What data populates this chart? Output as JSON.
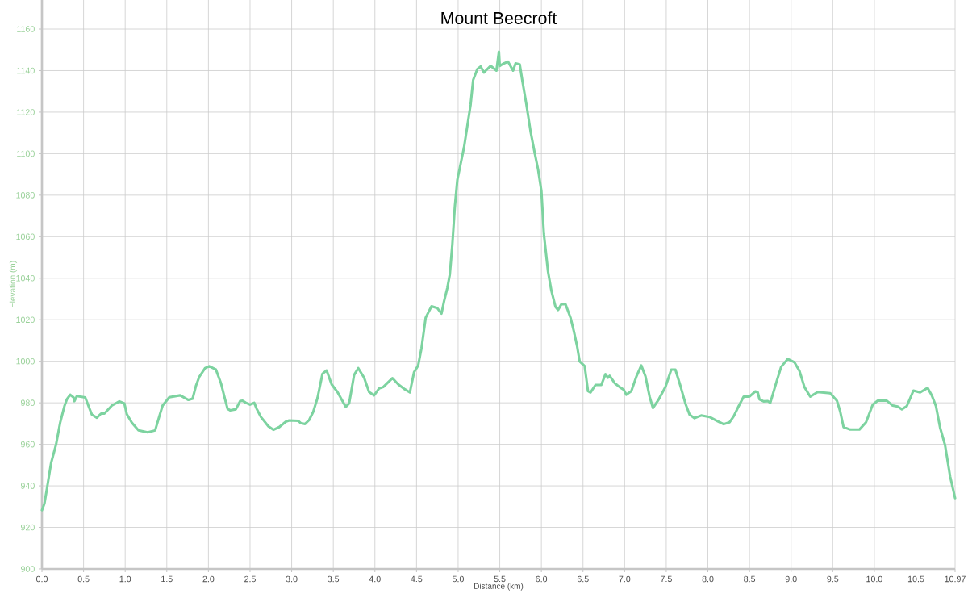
{
  "chart_data": {
    "type": "line",
    "title": "Mount Beecroft",
    "xlabel": "Distance (km)",
    "ylabel": "Elevation (m)",
    "xlim": [
      0,
      10.97
    ],
    "ylim": [
      900,
      1174
    ],
    "xticks": [
      {
        "value": 0,
        "label": "0.0"
      },
      {
        "value": 0.5,
        "label": "0.5"
      },
      {
        "value": 1,
        "label": "1.0"
      },
      {
        "value": 1.5,
        "label": "1.5"
      },
      {
        "value": 2,
        "label": "2.0"
      },
      {
        "value": 2.5,
        "label": "2.5"
      },
      {
        "value": 3,
        "label": "3.0"
      },
      {
        "value": 3.5,
        "label": "3.5"
      },
      {
        "value": 4,
        "label": "4.0"
      },
      {
        "value": 4.5,
        "label": "4.5"
      },
      {
        "value": 5,
        "label": "5.0"
      },
      {
        "value": 5.5,
        "label": "5.5"
      },
      {
        "value": 6,
        "label": "6.0"
      },
      {
        "value": 6.5,
        "label": "6.5"
      },
      {
        "value": 7,
        "label": "7.0"
      },
      {
        "value": 7.5,
        "label": "7.5"
      },
      {
        "value": 8,
        "label": "8.0"
      },
      {
        "value": 8.5,
        "label": "8.5"
      },
      {
        "value": 9,
        "label": "9.0"
      },
      {
        "value": 9.5,
        "label": "9.5"
      },
      {
        "value": 10,
        "label": "10.0"
      },
      {
        "value": 10.5,
        "label": "10.5"
      },
      10.97
    ],
    "yticks": [
      900,
      920,
      940,
      960,
      980,
      1000,
      1020,
      1040,
      1060,
      1080,
      1100,
      1120,
      1140,
      1160
    ],
    "grid": true,
    "line_style": "solid",
    "series": [
      {
        "color": "#7dd3a0",
        "x": [
          0,
          0.03,
          0.06,
          0.11,
          0.17,
          0.22,
          0.27,
          0.3,
          0.34,
          0.38,
          0.39,
          0.42,
          0.52,
          0.56,
          0.6,
          0.66,
          0.71,
          0.75,
          0.84,
          0.93,
          0.99,
          1.02,
          1.08,
          1.16,
          1.27,
          1.36,
          1.41,
          1.45,
          1.53,
          1.66,
          1.76,
          1.81,
          1.85,
          1.89,
          1.96,
          2.01,
          2.09,
          2.15,
          2.2,
          2.23,
          2.26,
          2.33,
          2.38,
          2.41,
          2.45,
          2.5,
          2.55,
          2.58,
          2.63,
          2.72,
          2.78,
          2.85,
          2.93,
          2.97,
          3.08,
          3.11,
          3.16,
          3.21,
          3.26,
          3.31,
          3.37,
          3.42,
          3.48,
          3.55,
          3.65,
          3.69,
          3.75,
          3.8,
          3.87,
          3.93,
          3.99,
          4.05,
          4.1,
          4.21,
          4.28,
          4.36,
          4.42,
          4.47,
          4.52,
          4.56,
          4.61,
          4.68,
          4.75,
          4.8,
          4.83,
          4.87,
          4.9,
          4.93,
          4.96,
          4.99,
          5.03,
          5.07,
          5.11,
          5.15,
          5.18,
          5.23,
          5.27,
          5.31,
          5.39,
          5.46,
          5.49,
          5.5,
          5.54,
          5.6,
          5.66,
          5.69,
          5.74,
          5.77,
          5.82,
          5.87,
          5.92,
          5.96,
          6.0,
          6.03,
          6.08,
          6.12,
          6.17,
          6.2,
          6.24,
          6.29,
          6.35,
          6.39,
          6.43,
          6.46,
          6.52,
          6.56,
          6.59,
          6.65,
          6.72,
          6.77,
          6.8,
          6.82,
          6.88,
          6.94,
          6.99,
          7.02,
          7.08,
          7.14,
          7.2,
          7.25,
          7.3,
          7.34,
          7.41,
          7.49,
          7.56,
          7.61,
          7.67,
          7.73,
          7.78,
          7.84,
          7.92,
          8.02,
          8.11,
          8.19,
          8.26,
          8.31,
          8.37,
          8.43,
          8.5,
          8.57,
          8.6,
          8.62,
          8.67,
          8.72,
          8.75,
          8.82,
          8.88,
          8.96,
          9.04,
          9.1,
          9.16,
          9.23,
          9.32,
          9.47,
          9.55,
          9.59,
          9.63,
          9.71,
          9.82,
          9.9,
          9.98,
          10.04,
          10.15,
          10.22,
          10.28,
          10.33,
          10.39,
          10.47,
          10.55,
          10.64,
          10.69,
          10.74,
          10.79,
          10.85,
          10.91,
          10.97
        ],
        "values": [
          928.3,
          931.5,
          938.7,
          951,
          960,
          970.6,
          978.4,
          981.7,
          983.9,
          982.6,
          980.8,
          983.3,
          982.6,
          978.4,
          974.3,
          972.8,
          974.8,
          974.8,
          978.7,
          980.7,
          979.7,
          974.5,
          970.4,
          966.7,
          965.8,
          966.7,
          973.5,
          978.7,
          982.7,
          983.6,
          981.4,
          982,
          988.2,
          992.5,
          996.7,
          997.6,
          996,
          989.5,
          981.7,
          977.1,
          976.4,
          976.9,
          980.8,
          981,
          980,
          979.1,
          980,
          977.1,
          973.2,
          968.7,
          967,
          968.3,
          970.9,
          971.5,
          971.3,
          970.2,
          969.8,
          971.7,
          975.8,
          982.3,
          994,
          995.6,
          988.9,
          985.2,
          978,
          979.7,
          993.4,
          996.7,
          992.1,
          985.2,
          983.6,
          986.9,
          987.6,
          991.9,
          988.9,
          986.5,
          985,
          994.7,
          998,
          1006.4,
          1021,
          1026.5,
          1025.6,
          1023,
          1028.8,
          1035.3,
          1041.8,
          1056.1,
          1074.3,
          1087.3,
          1095.1,
          1102.9,
          1113.3,
          1123.7,
          1135.4,
          1140.7,
          1142,
          1139.1,
          1142.3,
          1140,
          1149.1,
          1142.2,
          1143.3,
          1144.3,
          1140,
          1143.5,
          1143,
          1135.4,
          1123.7,
          1110.7,
          1100.3,
          1092.5,
          1082.1,
          1061.3,
          1043.1,
          1034,
          1026.2,
          1024.7,
          1027.5,
          1027.5,
          1021,
          1014.5,
          1007.1,
          999.9,
          997.7,
          985.6,
          985,
          988.6,
          988.6,
          993.8,
          992.1,
          993,
          989.5,
          987.6,
          986.3,
          983.9,
          985.6,
          992.5,
          998,
          992.8,
          983,
          977.5,
          981.7,
          987.6,
          996,
          996,
          988.2,
          979.7,
          974.3,
          972.6,
          973.9,
          973.2,
          971.3,
          969.7,
          970.6,
          973.5,
          978.4,
          983,
          983,
          985.5,
          985,
          981.7,
          980.7,
          980.8,
          980,
          989.5,
          997.3,
          1001.1,
          999.5,
          995.4,
          987.6,
          983,
          985.2,
          984.6,
          981,
          975.8,
          968.3,
          967.1,
          967.1,
          970.6,
          979.1,
          981,
          981,
          978.7,
          978.2,
          976.9,
          978.4,
          985.9,
          985,
          987.2,
          983.6,
          978.4,
          968,
          959.5,
          944.6,
          934.1
        ]
      }
    ]
  }
}
